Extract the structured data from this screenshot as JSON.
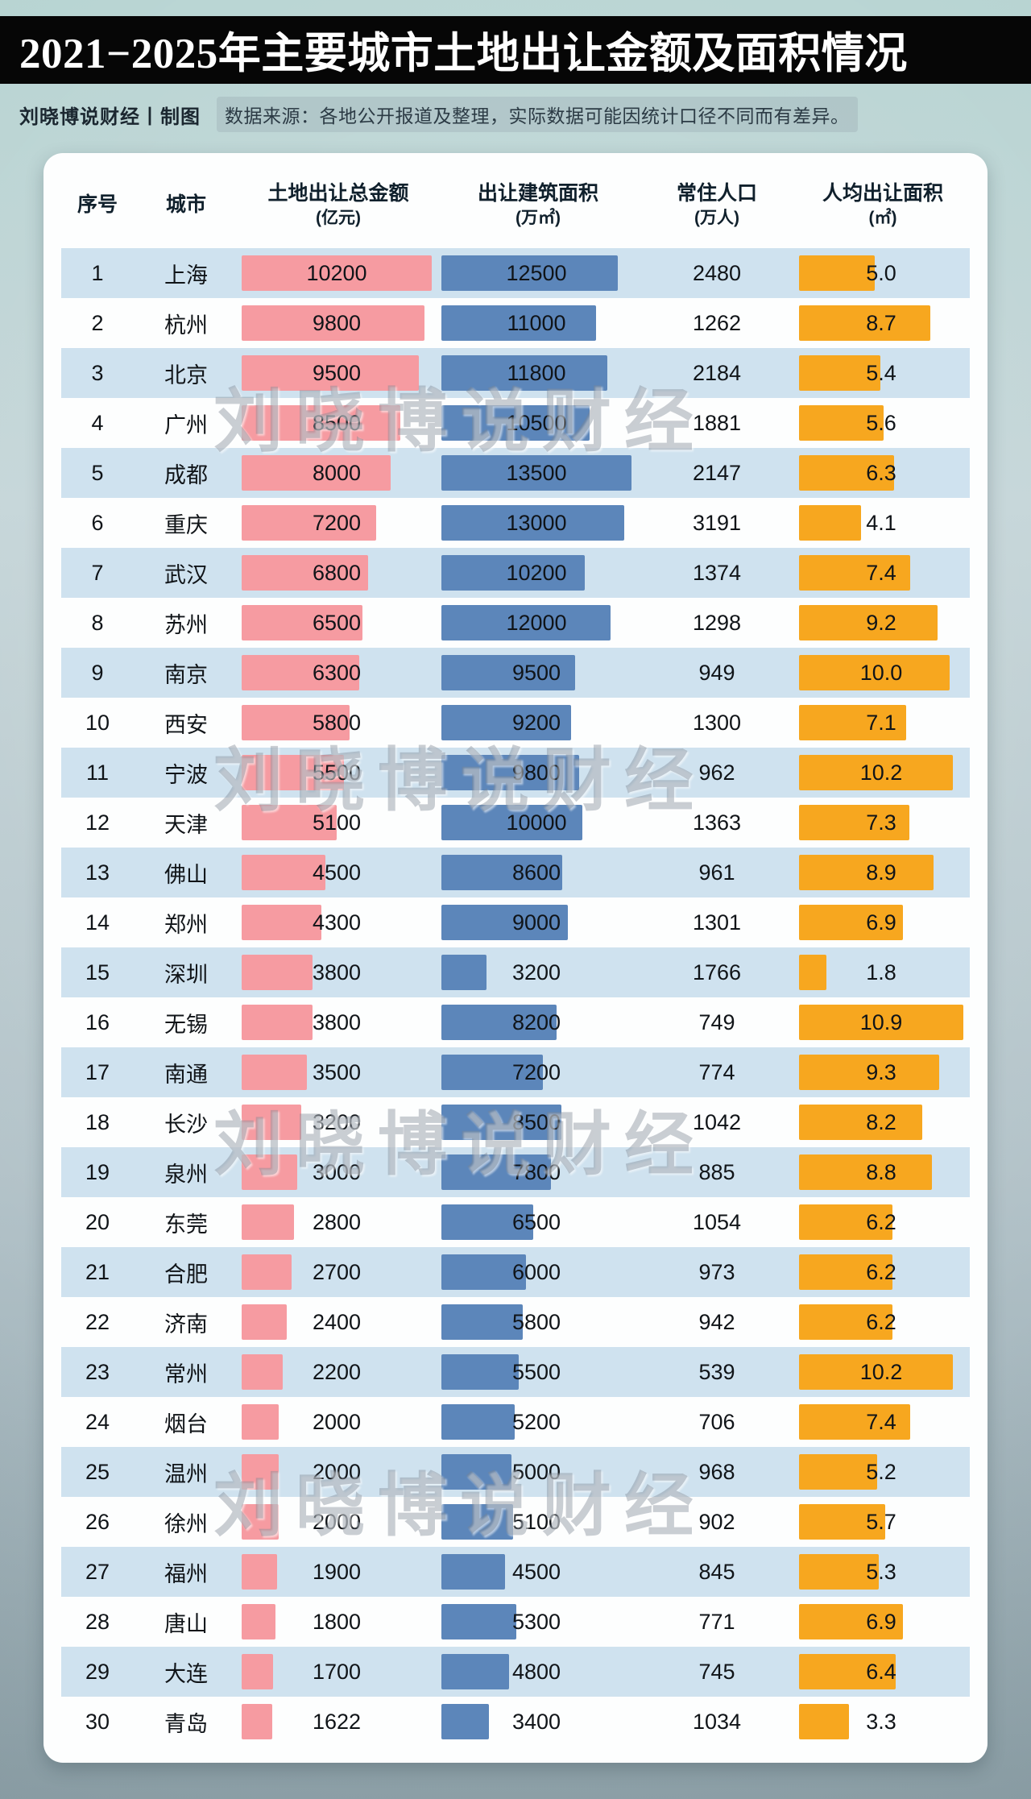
{
  "page": {
    "title": "2021−2025年主要城市土地出让金额及面积情况",
    "credit": "刘晓博说财经丨制图",
    "source_note": "数据来源：各地公开报道及整理，实际数据可能因统计口径不同而有差异。",
    "watermark": "刘晓博说财经"
  },
  "table": {
    "headers": {
      "index": "序号",
      "city": "城市",
      "amount": "土地出让总金额",
      "amount_unit": "(亿元)",
      "area": "出让建筑面积",
      "area_unit": "(万㎡)",
      "population": "常住人口",
      "population_unit": "(万人)",
      "per_capita": "人均出让面积",
      "per_capita_unit": "(㎡)"
    }
  },
  "colors": {
    "amount_bar": "#f69ba1",
    "area_bar": "#5c86ba",
    "per_capita_bar": "#f7a71f",
    "row_alt": "#cfe2ef",
    "title_band": "#060606"
  },
  "chart_data": {
    "type": "table",
    "title": "2021−2025年主要城市土地出让金额及面积情况",
    "columns": [
      "序号",
      "城市",
      "土地出让总金额(亿元)",
      "出让建筑面积(万㎡)",
      "常住人口(万人)",
      "人均出让面积(㎡)"
    ],
    "bar_columns": [
      "土地出让总金额(亿元)",
      "出让建筑面积(万㎡)",
      "人均出让面积(㎡)"
    ],
    "bar_max": {
      "amount": 10200,
      "area": 13500,
      "per_capita": 10.9
    },
    "rows": [
      {
        "index": 1,
        "city": "上海",
        "amount": 10200,
        "area": 12500,
        "population": 2480,
        "per_capita": "5.0"
      },
      {
        "index": 2,
        "city": "杭州",
        "amount": 9800,
        "area": 11000,
        "population": 1262,
        "per_capita": "8.7"
      },
      {
        "index": 3,
        "city": "北京",
        "amount": 9500,
        "area": 11800,
        "population": 2184,
        "per_capita": "5.4"
      },
      {
        "index": 4,
        "city": "广州",
        "amount": 8500,
        "area": 10500,
        "population": 1881,
        "per_capita": "5.6"
      },
      {
        "index": 5,
        "city": "成都",
        "amount": 8000,
        "area": 13500,
        "population": 2147,
        "per_capita": "6.3"
      },
      {
        "index": 6,
        "city": "重庆",
        "amount": 7200,
        "area": 13000,
        "population": 3191,
        "per_capita": "4.1"
      },
      {
        "index": 7,
        "city": "武汉",
        "amount": 6800,
        "area": 10200,
        "population": 1374,
        "per_capita": "7.4"
      },
      {
        "index": 8,
        "city": "苏州",
        "amount": 6500,
        "area": 12000,
        "population": 1298,
        "per_capita": "9.2"
      },
      {
        "index": 9,
        "city": "南京",
        "amount": 6300,
        "area": 9500,
        "population": 949,
        "per_capita": "10.0"
      },
      {
        "index": 10,
        "city": "西安",
        "amount": 5800,
        "area": 9200,
        "population": 1300,
        "per_capita": "7.1"
      },
      {
        "index": 11,
        "city": "宁波",
        "amount": 5500,
        "area": 9800,
        "population": 962,
        "per_capita": "10.2"
      },
      {
        "index": 12,
        "city": "天津",
        "amount": 5100,
        "area": 10000,
        "population": 1363,
        "per_capita": "7.3"
      },
      {
        "index": 13,
        "city": "佛山",
        "amount": 4500,
        "area": 8600,
        "population": 961,
        "per_capita": "8.9"
      },
      {
        "index": 14,
        "city": "郑州",
        "amount": 4300,
        "area": 9000,
        "population": 1301,
        "per_capita": "6.9"
      },
      {
        "index": 15,
        "city": "深圳",
        "amount": 3800,
        "area": 3200,
        "population": 1766,
        "per_capita": "1.8"
      },
      {
        "index": 16,
        "city": "无锡",
        "amount": 3800,
        "area": 8200,
        "population": 749,
        "per_capita": "10.9"
      },
      {
        "index": 17,
        "city": "南通",
        "amount": 3500,
        "area": 7200,
        "population": 774,
        "per_capita": "9.3"
      },
      {
        "index": 18,
        "city": "长沙",
        "amount": 3200,
        "area": 8500,
        "population": 1042,
        "per_capita": "8.2"
      },
      {
        "index": 19,
        "city": "泉州",
        "amount": 3000,
        "area": 7800,
        "population": 885,
        "per_capita": "8.8"
      },
      {
        "index": 20,
        "city": "东莞",
        "amount": 2800,
        "area": 6500,
        "population": 1054,
        "per_capita": "6.2"
      },
      {
        "index": 21,
        "city": "合肥",
        "amount": 2700,
        "area": 6000,
        "population": 973,
        "per_capita": "6.2"
      },
      {
        "index": 22,
        "city": "济南",
        "amount": 2400,
        "area": 5800,
        "population": 942,
        "per_capita": "6.2"
      },
      {
        "index": 23,
        "city": "常州",
        "amount": 2200,
        "area": 5500,
        "population": 539,
        "per_capita": "10.2"
      },
      {
        "index": 24,
        "city": "烟台",
        "amount": 2000,
        "area": 5200,
        "population": 706,
        "per_capita": "7.4"
      },
      {
        "index": 25,
        "city": "温州",
        "amount": 2000,
        "area": 5000,
        "population": 968,
        "per_capita": "5.2"
      },
      {
        "index": 26,
        "city": "徐州",
        "amount": 2000,
        "area": 5100,
        "population": 902,
        "per_capita": "5.7"
      },
      {
        "index": 27,
        "city": "福州",
        "amount": 1900,
        "area": 4500,
        "population": 845,
        "per_capita": "5.3"
      },
      {
        "index": 28,
        "city": "唐山",
        "amount": 1800,
        "area": 5300,
        "population": 771,
        "per_capita": "6.9"
      },
      {
        "index": 29,
        "city": "大连",
        "amount": 1700,
        "area": 4800,
        "population": 745,
        "per_capita": "6.4"
      },
      {
        "index": 30,
        "city": "青岛",
        "amount": 1622,
        "area": 3400,
        "population": 1034,
        "per_capita": "3.3"
      }
    ]
  }
}
